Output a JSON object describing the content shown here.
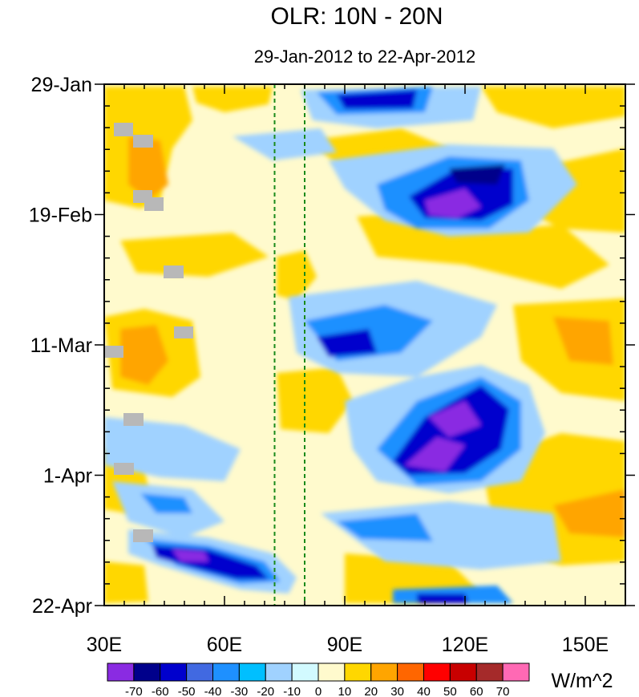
{
  "chart_data": {
    "type": "heatmap",
    "title": "OLR: 10N - 20N",
    "subtitle": "29-Jan-2012 to 22-Apr-2012",
    "x_axis": {
      "range": [
        30,
        160
      ],
      "tick_values": [
        30,
        60,
        90,
        120,
        150
      ],
      "tick_labels": [
        "30E",
        "60E",
        "90E",
        "120E",
        "150E"
      ]
    },
    "y_axis": {
      "range_days": [
        0,
        84
      ],
      "tick_days": [
        0,
        21,
        42,
        63,
        84
      ],
      "tick_labels": [
        "29-Jan",
        "19-Feb",
        "11-Mar",
        "1-Apr",
        "22-Apr"
      ]
    },
    "reference_lines_lon": [
      72.5,
      80
    ],
    "units_label": "W/m^2",
    "colorbar": {
      "levels": [
        "-70",
        "-60",
        "-50",
        "-40",
        "-30",
        "-20",
        "-10",
        "0",
        "10",
        "20",
        "30",
        "40",
        "50",
        "60",
        "70"
      ],
      "colors": [
        "#8a2be2",
        "#00008b",
        "#0000cd",
        "#4169e1",
        "#1e90ff",
        "#00bfff",
        "#a0d2ff",
        "#d2faff",
        "#fffacd",
        "#ffd700",
        "#ffa500",
        "#ff6600",
        "#ff0000",
        "#c80000",
        "#a52a2a",
        "#ff69b4"
      ]
    },
    "anomaly_features": [
      {
        "lon_start": 88,
        "lon_end": 96,
        "day_start": 0,
        "day_end": 8,
        "value": -40
      },
      {
        "lon_start": 100,
        "lon_end": 130,
        "day_start": 12,
        "day_end": 24,
        "value": -60
      },
      {
        "lon_start": 80,
        "lon_end": 110,
        "day_start": 34,
        "day_end": 45,
        "value": -40
      },
      {
        "lon_start": 100,
        "lon_end": 130,
        "day_start": 46,
        "day_end": 64,
        "value": -60
      },
      {
        "lon_start": 38,
        "lon_end": 75,
        "day_start": 69,
        "day_end": 84,
        "value": -60
      },
      {
        "lon_start": 30,
        "lon_end": 50,
        "day_start": 36,
        "day_end": 48,
        "value": 30
      },
      {
        "lon_start": 125,
        "lon_end": 160,
        "day_start": 30,
        "day_end": 48,
        "value": 30
      },
      {
        "lon_start": 130,
        "lon_end": 160,
        "day_start": 64,
        "day_end": 80,
        "value": 30
      }
    ]
  }
}
